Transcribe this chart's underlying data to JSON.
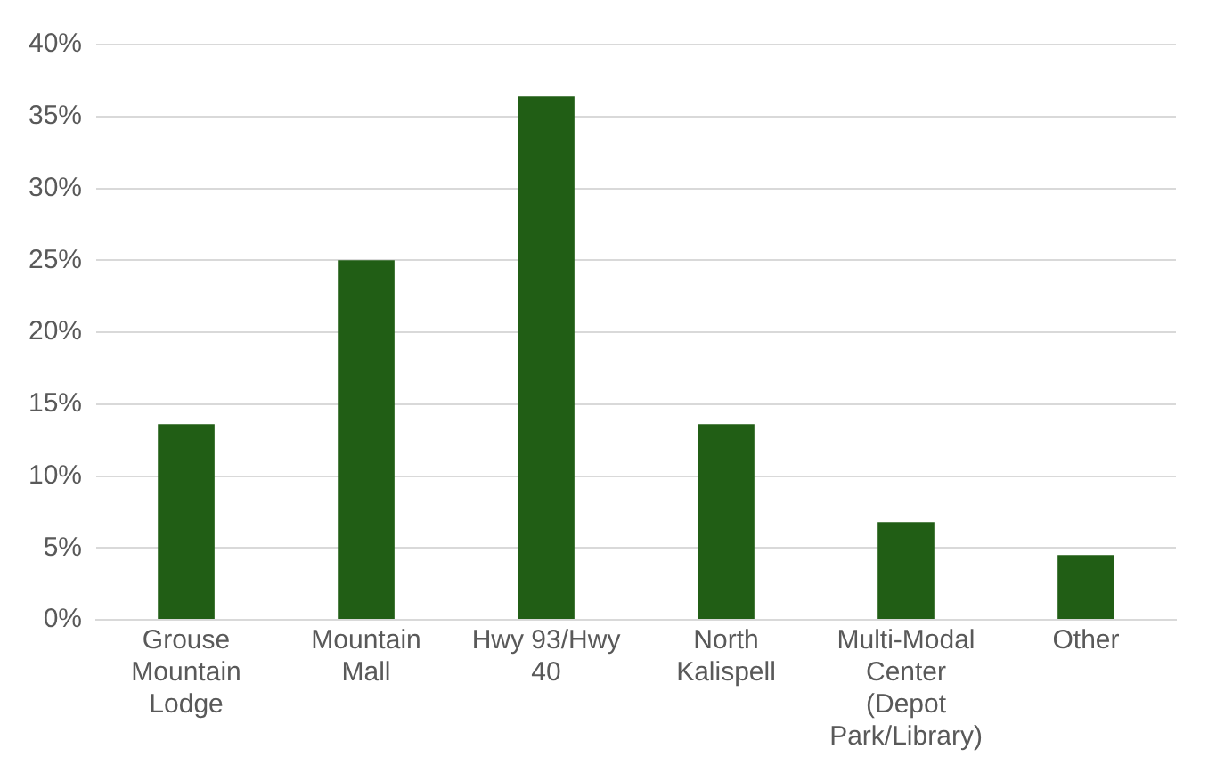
{
  "chart_data": {
    "type": "bar",
    "categories": [
      "Grouse Mountain Lodge",
      "Mountain Mall",
      "Hwy 93/Hwy 40",
      "North Kalispell",
      "Multi-Modal Center (Depot Park/Library)",
      "Other"
    ],
    "values": [
      13.6,
      25,
      36.4,
      13.6,
      6.8,
      4.5
    ],
    "color": "#215e15",
    "ylim": [
      0,
      40
    ],
    "yticks": [
      {
        "value": 0,
        "label": "0%"
      },
      {
        "value": 5,
        "label": "5%"
      },
      {
        "value": 10,
        "label": "10%"
      },
      {
        "value": 15,
        "label": "15%"
      },
      {
        "value": 20,
        "label": "20%"
      },
      {
        "value": 25,
        "label": "25%"
      },
      {
        "value": 30,
        "label": "30%"
      },
      {
        "value": 35,
        "label": "35%"
      },
      {
        "value": 40,
        "label": "40%"
      }
    ],
    "grid": "y"
  }
}
